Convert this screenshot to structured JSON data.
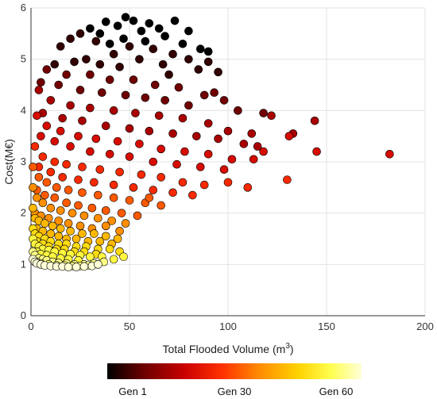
{
  "chart_data": {
    "type": "scatter",
    "title": "",
    "xlabel": "Total Flooded Volume (m",
    "xlabel_sup": "3",
    "xlabel_close": ")",
    "ylabel": "Cost(M€)",
    "xlim": [
      0,
      200
    ],
    "ylim": [
      0,
      6
    ],
    "xticks": [
      "0",
      "50",
      "100",
      "150",
      "200"
    ],
    "yticks": [
      "0",
      "1",
      "2",
      "3",
      "4",
      "5",
      "6"
    ],
    "grid": true,
    "color_scale": {
      "name": "generation",
      "colors": [
        "#000000",
        "#6a0000",
        "#c80000",
        "#ff3000",
        "#ff8c00",
        "#ffd200",
        "#ffff50",
        "#ffffd8"
      ],
      "labels": [
        "Gen 1",
        "Gen 30",
        "Gen 60"
      ],
      "label_positions": [
        0.1,
        0.5,
        0.9
      ]
    },
    "point_style": {
      "stroke": "#000000",
      "radius": 5
    },
    "series": [
      {
        "generation": 1,
        "points": [
          [
            48,
            5.82
          ],
          [
            52,
            5.75
          ],
          [
            60,
            5.7
          ],
          [
            73,
            5.75
          ],
          [
            38,
            5.73
          ],
          [
            30,
            5.6
          ],
          [
            44,
            5.65
          ],
          [
            56,
            5.55
          ],
          [
            65,
            5.6
          ],
          [
            80,
            5.55
          ],
          [
            35,
            5.5
          ],
          [
            68,
            5.45
          ],
          [
            86,
            5.2
          ],
          [
            90,
            5.15
          ],
          [
            47,
            5.4
          ],
          [
            58,
            5.35
          ],
          [
            40,
            5.3
          ],
          [
            77,
            5.3
          ]
        ]
      },
      {
        "generation": 5,
        "points": [
          [
            25,
            5.5
          ],
          [
            20,
            5.4
          ],
          [
            33,
            5.35
          ],
          [
            50,
            5.25
          ],
          [
            62,
            5.2
          ],
          [
            72,
            5.1
          ],
          [
            80,
            5.0
          ],
          [
            15,
            5.25
          ],
          [
            42,
            5.1
          ],
          [
            90,
            4.95
          ],
          [
            28,
            5.0
          ],
          [
            55,
            5.0
          ],
          [
            67,
            4.9
          ],
          [
            85,
            4.8
          ],
          [
            95,
            4.75
          ],
          [
            12,
            4.9
          ],
          [
            22,
            4.95
          ],
          [
            35,
            4.9
          ],
          [
            45,
            4.85
          ],
          [
            70,
            4.7
          ]
        ]
      },
      {
        "generation": 10,
        "points": [
          [
            8,
            4.8
          ],
          [
            18,
            4.7
          ],
          [
            30,
            4.7
          ],
          [
            40,
            4.6
          ],
          [
            52,
            4.6
          ],
          [
            63,
            4.5
          ],
          [
            75,
            4.45
          ],
          [
            88,
            4.3
          ],
          [
            98,
            4.2
          ],
          [
            14,
            4.5
          ],
          [
            25,
            4.4
          ],
          [
            36,
            4.35
          ],
          [
            48,
            4.3
          ],
          [
            58,
            4.25
          ],
          [
            68,
            4.2
          ],
          [
            80,
            4.1
          ],
          [
            105,
            4.0
          ],
          [
            118,
            3.95
          ],
          [
            5,
            4.55
          ],
          [
            93,
            4.35
          ]
        ]
      },
      {
        "generation": 15,
        "points": [
          [
            4,
            4.4
          ],
          [
            10,
            4.2
          ],
          [
            20,
            4.1
          ],
          [
            30,
            4.05
          ],
          [
            42,
            4.0
          ],
          [
            53,
            3.95
          ],
          [
            65,
            3.9
          ],
          [
            77,
            3.85
          ],
          [
            90,
            3.75
          ],
          [
            100,
            3.6
          ],
          [
            112,
            3.55
          ],
          [
            122,
            3.9
          ],
          [
            144,
            3.8
          ],
          [
            133,
            3.55
          ],
          [
            6,
            3.95
          ],
          [
            16,
            3.85
          ],
          [
            26,
            3.8
          ],
          [
            38,
            3.7
          ],
          [
            50,
            3.65
          ],
          [
            60,
            3.6
          ],
          [
            72,
            3.55
          ],
          [
            84,
            3.5
          ],
          [
            95,
            3.45
          ],
          [
            108,
            3.35
          ],
          [
            115,
            3.3
          ]
        ]
      },
      {
        "generation": 20,
        "points": [
          [
            3,
            3.9
          ],
          [
            8,
            3.7
          ],
          [
            15,
            3.6
          ],
          [
            24,
            3.5
          ],
          [
            33,
            3.45
          ],
          [
            44,
            3.4
          ],
          [
            55,
            3.35
          ],
          [
            66,
            3.25
          ],
          [
            78,
            3.2
          ],
          [
            90,
            3.15
          ],
          [
            102,
            3.05
          ],
          [
            113,
            3.05
          ],
          [
            145,
            3.2
          ],
          [
            182,
            3.15
          ],
          [
            131,
            3.5
          ],
          [
            118,
            3.2
          ],
          [
            5,
            3.5
          ],
          [
            12,
            3.4
          ],
          [
            20,
            3.3
          ],
          [
            30,
            3.2
          ],
          [
            40,
            3.15
          ],
          [
            50,
            3.1
          ],
          [
            62,
            3.0
          ],
          [
            74,
            2.95
          ],
          [
            86,
            2.9
          ],
          [
            98,
            2.85
          ]
        ]
      },
      {
        "generation": 25,
        "points": [
          [
            2,
            3.3
          ],
          [
            6,
            3.1
          ],
          [
            12,
            3.0
          ],
          [
            18,
            2.95
          ],
          [
            26,
            2.9
          ],
          [
            35,
            2.85
          ],
          [
            45,
            2.8
          ],
          [
            56,
            2.75
          ],
          [
            66,
            2.7
          ],
          [
            77,
            2.6
          ],
          [
            88,
            2.55
          ],
          [
            100,
            2.6
          ],
          [
            110,
            2.5
          ],
          [
            130,
            2.65
          ],
          [
            4,
            2.9
          ],
          [
            10,
            2.8
          ],
          [
            16,
            2.7
          ],
          [
            24,
            2.65
          ],
          [
            32,
            2.6
          ],
          [
            42,
            2.55
          ],
          [
            52,
            2.5
          ],
          [
            62,
            2.45
          ],
          [
            72,
            2.4
          ],
          [
            82,
            2.35
          ]
        ]
      },
      {
        "generation": 30,
        "points": [
          [
            1,
            2.9
          ],
          [
            4,
            2.7
          ],
          [
            8,
            2.6
          ],
          [
            13,
            2.5
          ],
          [
            19,
            2.45
          ],
          [
            26,
            2.4
          ],
          [
            34,
            2.35
          ],
          [
            42,
            2.3
          ],
          [
            50,
            2.25
          ],
          [
            58,
            2.2
          ],
          [
            66,
            2.15
          ],
          [
            3,
            2.45
          ],
          [
            7,
            2.35
          ],
          [
            12,
            2.3
          ],
          [
            18,
            2.2
          ],
          [
            24,
            2.15
          ],
          [
            31,
            2.1
          ],
          [
            38,
            2.05
          ],
          [
            46,
            2.0
          ],
          [
            54,
            1.95
          ],
          [
            60,
            2.3
          ]
        ]
      },
      {
        "generation": 35,
        "points": [
          [
            1,
            2.5
          ],
          [
            3,
            2.3
          ],
          [
            6,
            2.2
          ],
          [
            10,
            2.1
          ],
          [
            15,
            2.05
          ],
          [
            21,
            2.0
          ],
          [
            27,
            1.95
          ],
          [
            34,
            1.9
          ],
          [
            41,
            1.85
          ],
          [
            48,
            1.8
          ],
          [
            2,
            2.0
          ],
          [
            5,
            1.95
          ],
          [
            9,
            1.9
          ],
          [
            14,
            1.85
          ],
          [
            19,
            1.8
          ],
          [
            25,
            1.75
          ],
          [
            31,
            1.7
          ],
          [
            38,
            1.75
          ],
          [
            45,
            1.65
          ]
        ]
      },
      {
        "generation": 40,
        "points": [
          [
            1,
            2.1
          ],
          [
            2,
            1.9
          ],
          [
            4,
            1.85
          ],
          [
            7,
            1.8
          ],
          [
            11,
            1.75
          ],
          [
            15,
            1.7
          ],
          [
            20,
            1.65
          ],
          [
            26,
            1.6
          ],
          [
            32,
            1.6
          ],
          [
            38,
            1.55
          ],
          [
            44,
            1.5
          ],
          [
            3,
            1.7
          ],
          [
            6,
            1.65
          ],
          [
            10,
            1.6
          ],
          [
            14,
            1.55
          ],
          [
            18,
            1.5
          ],
          [
            23,
            1.5
          ],
          [
            29,
            1.45
          ],
          [
            35,
            1.45
          ],
          [
            41,
            1.4
          ]
        ]
      },
      {
        "generation": 45,
        "points": [
          [
            1,
            1.7
          ],
          [
            2,
            1.6
          ],
          [
            4,
            1.55
          ],
          [
            7,
            1.5
          ],
          [
            10,
            1.45
          ],
          [
            14,
            1.4
          ],
          [
            18,
            1.4
          ],
          [
            23,
            1.35
          ],
          [
            28,
            1.35
          ],
          [
            34,
            1.3
          ],
          [
            40,
            1.3
          ],
          [
            45,
            1.25
          ],
          [
            3,
            1.45
          ],
          [
            6,
            1.4
          ],
          [
            9,
            1.35
          ],
          [
            13,
            1.3
          ],
          [
            17,
            1.3
          ],
          [
            22,
            1.25
          ],
          [
            27,
            1.25
          ],
          [
            33,
            1.2
          ]
        ]
      },
      {
        "generation": 50,
        "points": [
          [
            1,
            1.5
          ],
          [
            2,
            1.4
          ],
          [
            4,
            1.35
          ],
          [
            6,
            1.3
          ],
          [
            9,
            1.28
          ],
          [
            12,
            1.25
          ],
          [
            16,
            1.22
          ],
          [
            20,
            1.2
          ],
          [
            25,
            1.18
          ],
          [
            30,
            1.15
          ],
          [
            36,
            1.15
          ],
          [
            42,
            1.1
          ],
          [
            47,
            1.15
          ],
          [
            3,
            1.25
          ],
          [
            5,
            1.2
          ],
          [
            8,
            1.18
          ],
          [
            11,
            1.15
          ],
          [
            15,
            1.12
          ],
          [
            19,
            1.1
          ],
          [
            24,
            1.08
          ]
        ]
      },
      {
        "generation": 55,
        "points": [
          [
            1,
            1.25
          ],
          [
            2,
            1.18
          ],
          [
            4,
            1.12
          ],
          [
            6,
            1.1
          ],
          [
            8,
            1.08
          ],
          [
            11,
            1.05
          ],
          [
            14,
            1.03
          ],
          [
            18,
            1.02
          ],
          [
            22,
            1.0
          ],
          [
            27,
            1.0
          ],
          [
            32,
            1.02
          ],
          [
            37,
            1.05
          ],
          [
            3,
            1.05
          ],
          [
            5,
            1.02
          ],
          [
            9,
            1.0
          ],
          [
            13,
            0.98
          ],
          [
            17,
            0.98
          ],
          [
            21,
            0.97
          ],
          [
            25,
            0.97
          ],
          [
            29,
            0.98
          ]
        ]
      },
      {
        "generation": 60,
        "points": [
          [
            1,
            1.1
          ],
          [
            2,
            1.05
          ],
          [
            3,
            1.02
          ],
          [
            5,
            1.0
          ],
          [
            7,
            0.98
          ],
          [
            10,
            0.97
          ],
          [
            13,
            0.96
          ],
          [
            16,
            0.96
          ],
          [
            19,
            0.95
          ],
          [
            23,
            0.95
          ],
          [
            27,
            0.96
          ],
          [
            31,
            0.97
          ],
          [
            34,
            1.0
          ]
        ]
      }
    ]
  }
}
